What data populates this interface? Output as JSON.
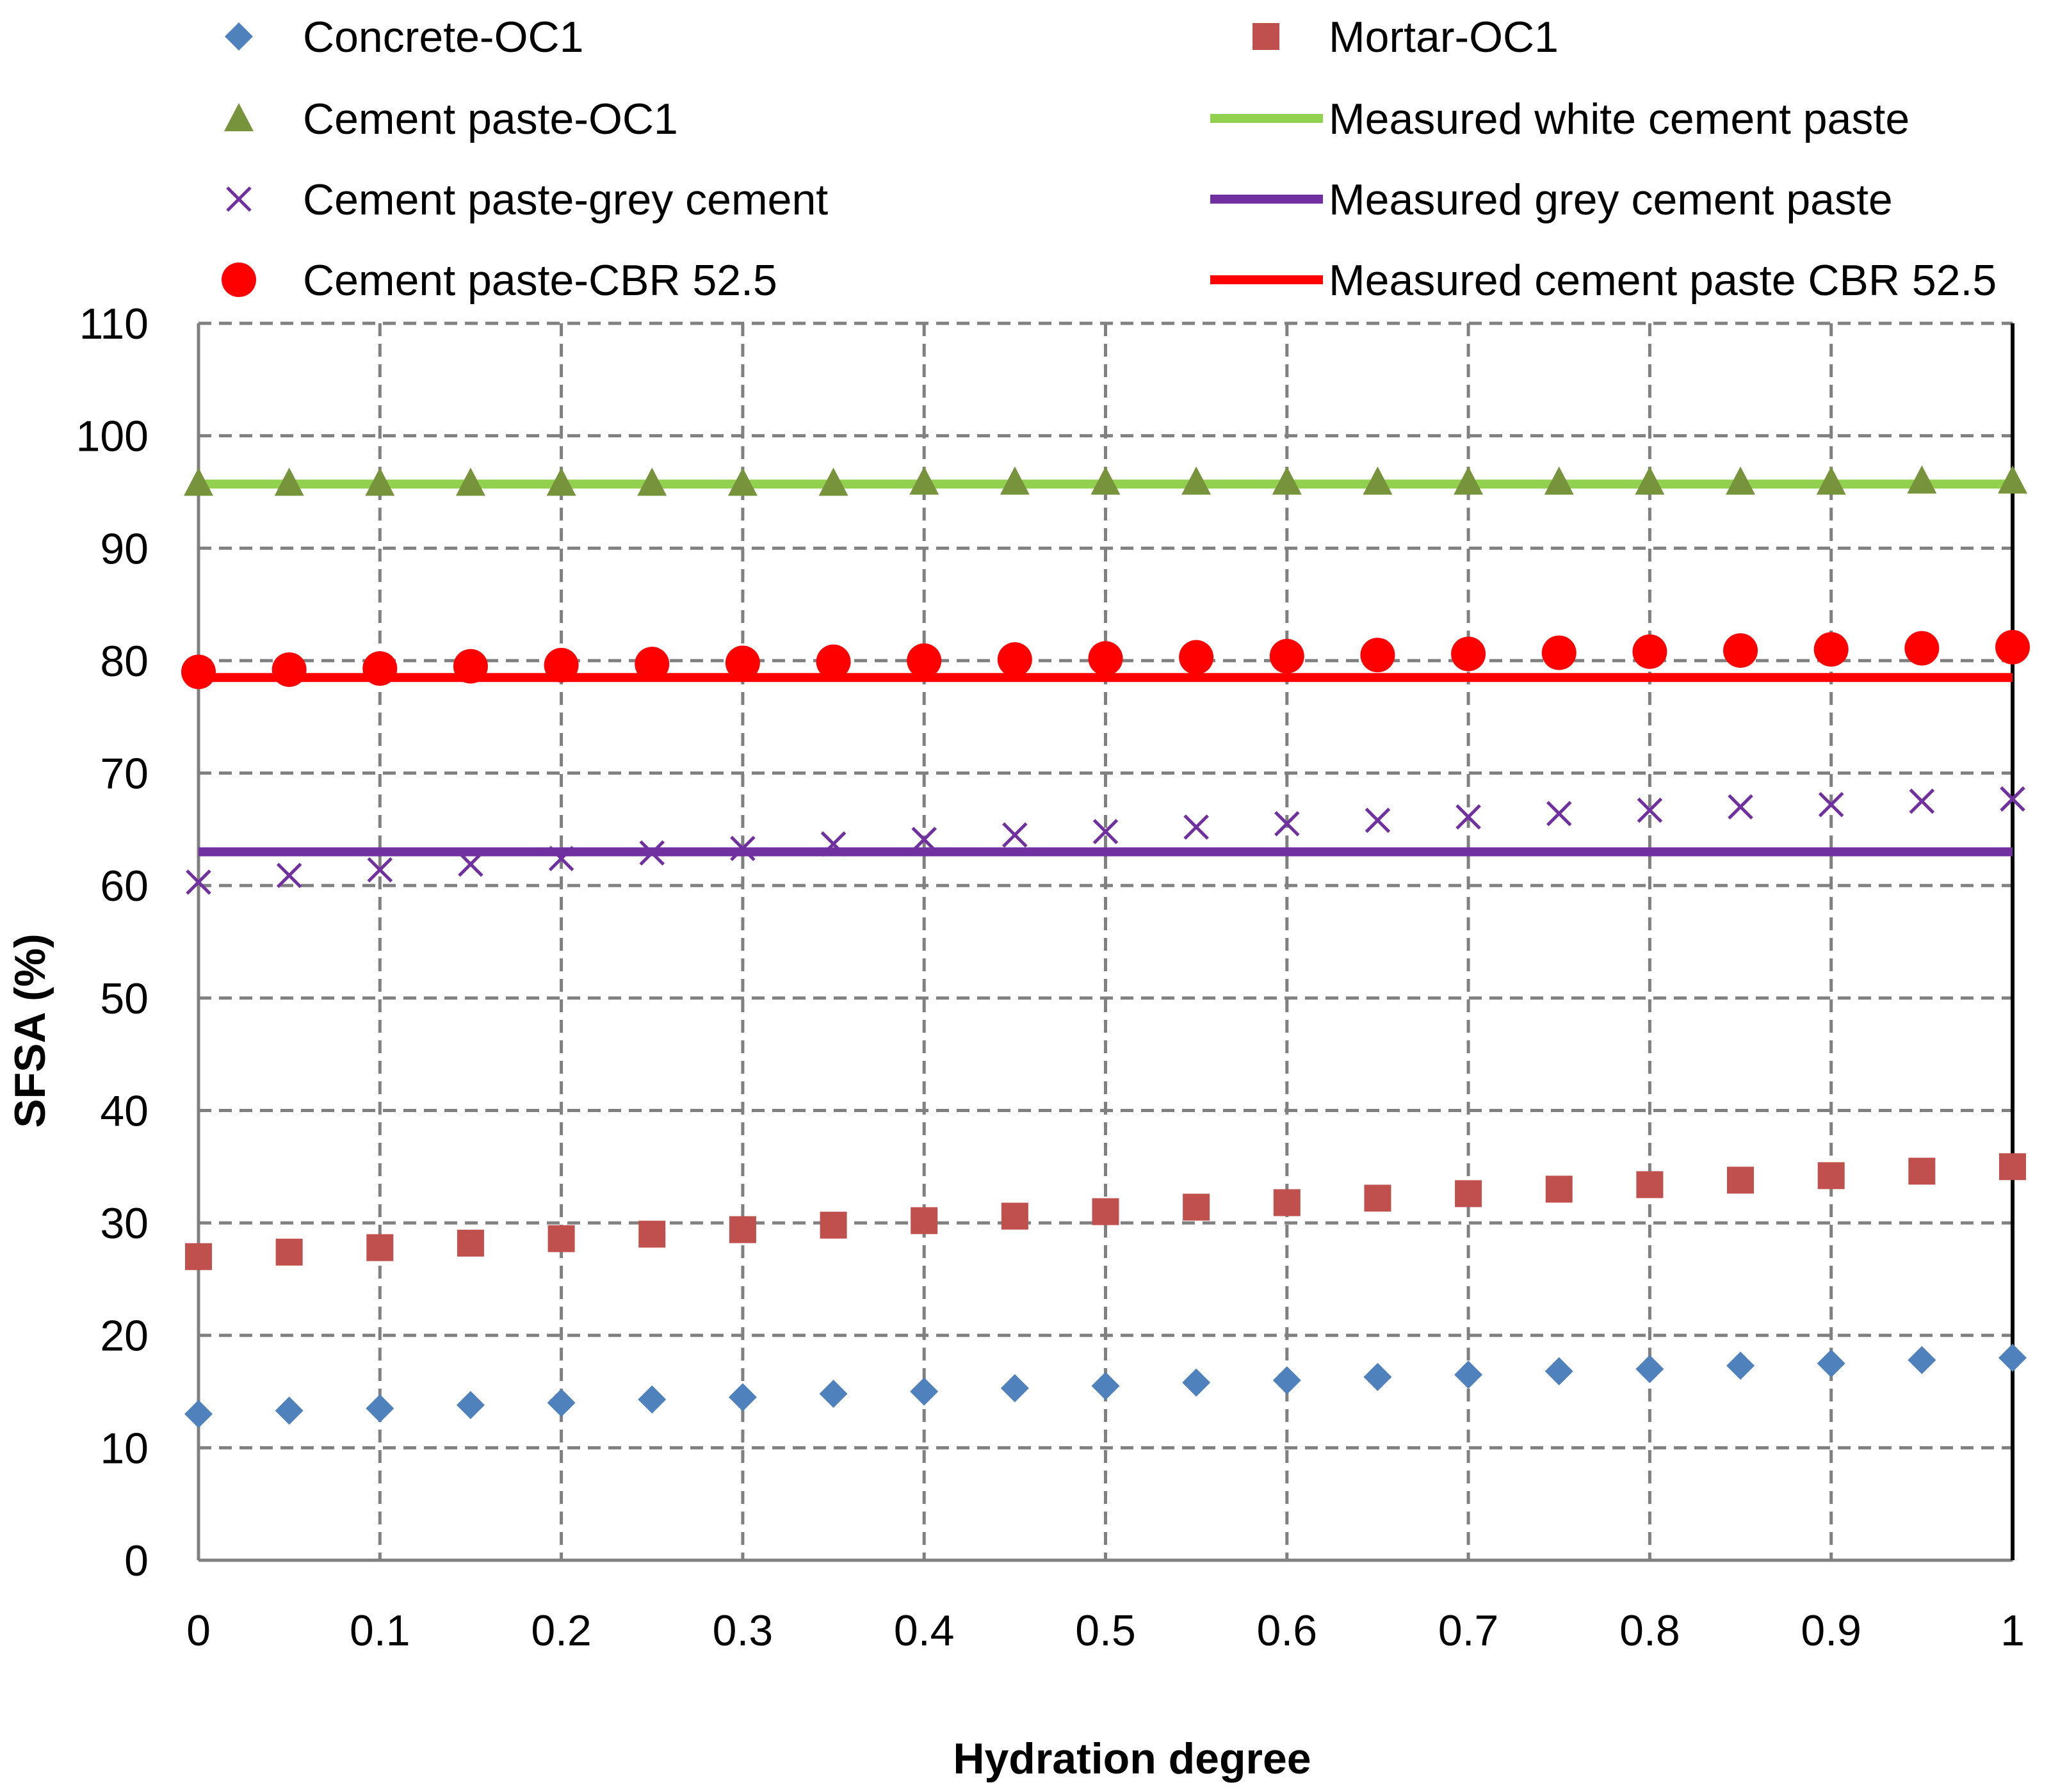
{
  "chart_data": {
    "type": "scatter",
    "title": "",
    "xlabel": "Hydration degree",
    "ylabel": "SFSA (%)",
    "xlim": [
      0,
      1
    ],
    "ylim": [
      0,
      110
    ],
    "x_ticks": [
      "0",
      "0.1",
      "0.2",
      "0.3",
      "0.4",
      "0.5",
      "0.6",
      "0.7",
      "0.8",
      "0.9",
      "1"
    ],
    "y_ticks": [
      "0",
      "10",
      "20",
      "30",
      "40",
      "50",
      "60",
      "70",
      "80",
      "90",
      "100",
      "110"
    ],
    "grid": true,
    "legend_position": "top",
    "x": [
      0,
      0.05,
      0.1,
      0.15,
      0.2,
      0.25,
      0.3,
      0.35,
      0.4,
      0.45,
      0.5,
      0.55,
      0.6,
      0.65,
      0.7,
      0.75,
      0.8,
      0.85,
      0.9,
      0.95,
      1
    ],
    "series": [
      {
        "name": "Concrete-OC1",
        "kind": "marker",
        "marker": "diamond",
        "color": "#4f81bd",
        "values": [
          13.0,
          13.3,
          13.5,
          13.8,
          14.0,
          14.3,
          14.5,
          14.8,
          15.0,
          15.3,
          15.5,
          15.8,
          16.0,
          16.3,
          16.5,
          16.8,
          17.0,
          17.3,
          17.5,
          17.8,
          18.0
        ]
      },
      {
        "name": "Mortar-OC1",
        "kind": "marker",
        "marker": "square",
        "color": "#c0504d",
        "values": [
          27.0,
          27.4,
          27.8,
          28.2,
          28.6,
          29.0,
          29.4,
          29.8,
          30.2,
          30.6,
          31.0,
          31.4,
          31.8,
          32.2,
          32.6,
          33.0,
          33.4,
          33.8,
          34.2,
          34.6,
          35.0
        ]
      },
      {
        "name": "Cement paste-OC1",
        "kind": "marker",
        "marker": "triangle",
        "color": "#77933c",
        "values": [
          95.8,
          95.8,
          95.8,
          95.8,
          95.8,
          95.8,
          95.8,
          95.8,
          95.9,
          95.9,
          95.9,
          95.9,
          95.9,
          95.9,
          95.9,
          95.9,
          95.9,
          95.9,
          95.9,
          96.0,
          96.0
        ]
      },
      {
        "name": "Measured white cement paste",
        "kind": "line",
        "color": "#92d050",
        "value": 95.7
      },
      {
        "name": "Cement paste-grey cement",
        "kind": "marker",
        "marker": "x",
        "color": "#7030a0",
        "values": [
          60.3,
          60.9,
          61.4,
          61.9,
          62.4,
          62.9,
          63.3,
          63.7,
          64.1,
          64.5,
          64.8,
          65.2,
          65.5,
          65.8,
          66.1,
          66.4,
          66.7,
          67.0,
          67.2,
          67.5,
          67.7
        ]
      },
      {
        "name": "Measured grey cement paste",
        "kind": "line",
        "color": "#7030a0",
        "value": 63.0
      },
      {
        "name": "Cement paste-CBR 52.5",
        "kind": "marker",
        "marker": "circle",
        "color": "#ff0000",
        "values": [
          79.0,
          79.2,
          79.3,
          79.5,
          79.6,
          79.7,
          79.8,
          79.9,
          80.0,
          80.1,
          80.2,
          80.3,
          80.4,
          80.5,
          80.6,
          80.7,
          80.8,
          80.9,
          81.0,
          81.1,
          81.2
        ]
      },
      {
        "name": "Measured cement paste CBR 52.5",
        "kind": "line",
        "color": "#ff0000",
        "value": 78.5
      }
    ]
  }
}
